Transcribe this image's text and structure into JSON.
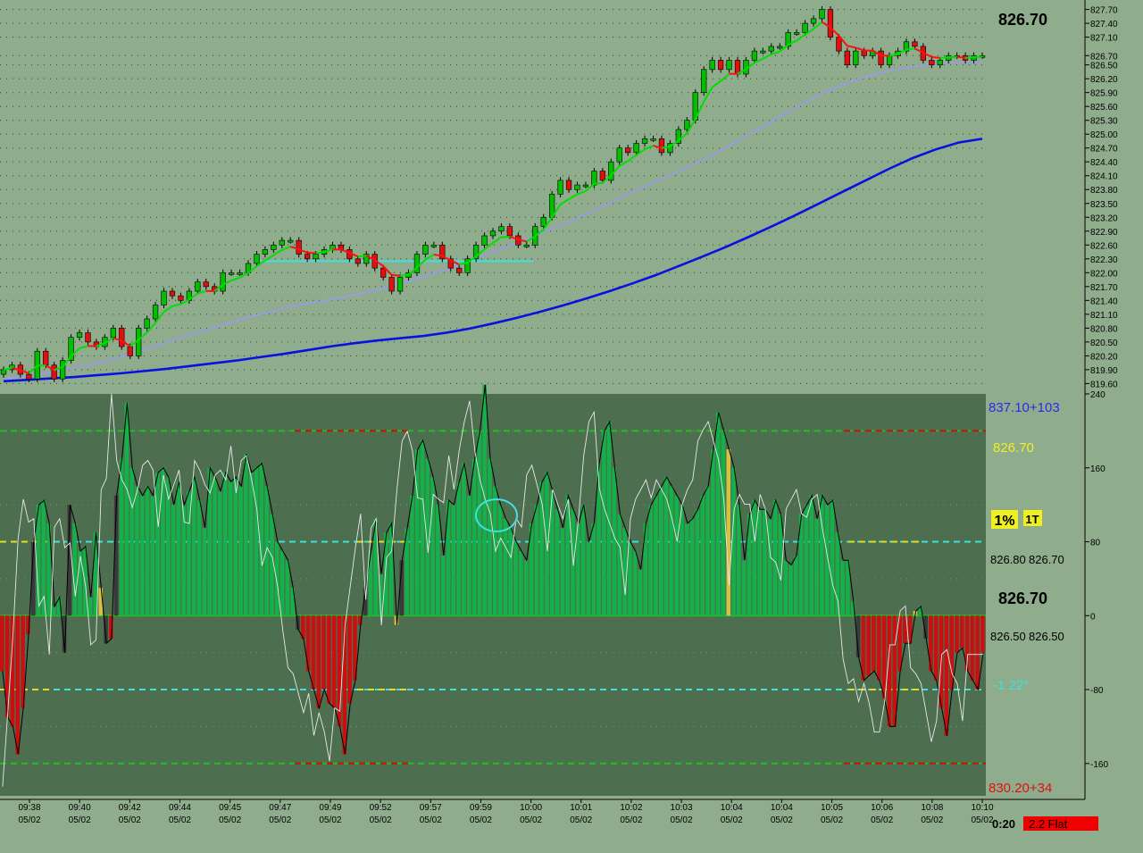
{
  "colors": {
    "background": "#8fac8c",
    "oscillator_panel": "#4d6e4f",
    "bull_candle": "#00c000",
    "bear_candle": "#e01010",
    "ma_fast_up": "#00e000",
    "ma_fast_down": "#ff1010",
    "ma_mid": "#9a9ae8",
    "ma_slow": "#0a10e0",
    "support_line": "#40e0e0",
    "histogram_up": "#14b04a",
    "histogram_down": "#c81010",
    "histogram_neutral": "#3a3a3a",
    "histogram_warn": "#d8c040"
  },
  "chart_data": [
    {
      "type": "candlestick",
      "title": "",
      "price_readout": "826.70",
      "y_ticks": [
        "827.70",
        "827.40",
        "827.10",
        "826.70",
        "826.50",
        "826.20",
        "825.90",
        "825.60",
        "825.30",
        "825.00",
        "824.70",
        "824.40",
        "824.10",
        "823.80",
        "823.50",
        "823.20",
        "822.90",
        "822.60",
        "822.30",
        "822.00",
        "821.70",
        "821.40",
        "821.10",
        "820.80",
        "820.50",
        "820.20",
        "819.90",
        "819.60"
      ],
      "ylim": [
        819.55,
        827.75
      ],
      "x_tick_times": [
        "09:38",
        "09:40",
        "09:42",
        "09:44",
        "09:45",
        "09:47",
        "09:49",
        "09:52",
        "09:57",
        "09:59",
        "10:00",
        "10:01",
        "10:02",
        "10:03",
        "10:04",
        "10:04",
        "10:05",
        "10:06",
        "10:08",
        "10:10"
      ],
      "x_tick_dates": [
        "05/02",
        "05/02",
        "05/02",
        "05/02",
        "05/02",
        "05/02",
        "05/02",
        "05/02",
        "05/02",
        "05/02",
        "05/02",
        "05/02",
        "05/02",
        "05/02",
        "05/02",
        "05/02",
        "05/02",
        "05/02",
        "05/02",
        "05/02"
      ],
      "closes": [
        819.9,
        820.0,
        819.8,
        819.7,
        820.3,
        820.0,
        819.7,
        820.1,
        820.6,
        820.7,
        820.5,
        820.4,
        820.6,
        820.8,
        820.4,
        820.2,
        820.8,
        821.0,
        821.3,
        821.6,
        821.5,
        821.4,
        821.6,
        821.8,
        821.7,
        821.6,
        822.0,
        822.0,
        822.0,
        822.2,
        822.4,
        822.5,
        822.6,
        822.7,
        822.7,
        822.4,
        822.3,
        822.4,
        822.5,
        822.6,
        822.5,
        822.3,
        822.2,
        822.4,
        822.1,
        821.9,
        821.6,
        821.9,
        822.0,
        822.4,
        822.6,
        822.6,
        822.3,
        822.1,
        822.0,
        822.3,
        822.6,
        822.8,
        822.9,
        823.0,
        822.8,
        822.6,
        822.6,
        823.0,
        823.2,
        823.7,
        824.0,
        823.8,
        823.9,
        823.9,
        824.2,
        824.0,
        824.4,
        824.7,
        824.6,
        824.8,
        824.9,
        824.9,
        824.6,
        824.8,
        825.1,
        825.3,
        825.9,
        826.4,
        826.6,
        826.4,
        826.6,
        826.3,
        826.6,
        826.8,
        826.8,
        826.9,
        826.9,
        827.2,
        827.2,
        827.4,
        827.5,
        827.7,
        827.1,
        826.8,
        826.5,
        826.8,
        826.7,
        826.8,
        826.5,
        826.7,
        826.8,
        827.0,
        826.9,
        826.6,
        826.5,
        826.6,
        826.7,
        826.7,
        826.6,
        826.7,
        826.7
      ],
      "series": [
        {
          "name": "",
          "color": "#0a10e0",
          "values": [
            819.65,
            819.68,
            819.71,
            819.74,
            819.78,
            819.82,
            819.87,
            819.92,
            819.98,
            820.04,
            820.1,
            820.17,
            820.24,
            820.32,
            820.4,
            820.47,
            820.53,
            820.58,
            820.63,
            820.7,
            820.79,
            820.9,
            821.02,
            821.15,
            821.29,
            821.44,
            821.6,
            821.77,
            821.95,
            822.15,
            822.35,
            822.56,
            822.78,
            823.01,
            823.25,
            823.5,
            823.75,
            824.0,
            824.25,
            824.48,
            824.67,
            824.82,
            824.9
          ]
        },
        {
          "name": "",
          "color": "#9a9ae8",
          "values": [
            819.7,
            819.78,
            819.86,
            819.96,
            820.08,
            820.23,
            820.4,
            820.58,
            820.75,
            820.92,
            821.07,
            821.21,
            821.32,
            821.41,
            821.52,
            821.65,
            821.79,
            821.96,
            822.14,
            822.34,
            822.55,
            822.76,
            822.98,
            823.22,
            823.47,
            823.73,
            823.98,
            824.22,
            824.48,
            824.78,
            825.08,
            825.4,
            825.7,
            825.98,
            826.18,
            826.34,
            826.44,
            826.53,
            826.55,
            826.56
          ]
        }
      ],
      "annotations": [
        {
          "type": "horizontal-line",
          "value": 822.25,
          "color": "#40e0e0"
        }
      ]
    },
    {
      "type": "histogram",
      "title": "",
      "y_ticks": [
        "240",
        "160",
        "80",
        "0",
        "-80",
        "-160"
      ],
      "ylim": [
        -195,
        240
      ],
      "levels": [
        200,
        80,
        0,
        -80,
        -160
      ],
      "labels": {
        "upper_band": "837.10+103",
        "price_top": "826.70",
        "percent_badge": "1%",
        "t_badge": "1T",
        "pair_upper_left": "826.80",
        "pair_upper_right": "826.70",
        "zero_readout": "826.70",
        "pair_lower_left": "826.50",
        "pair_lower_right": "826.50",
        "angle_readout": "-1  22°",
        "lower_band": "830.20+34"
      },
      "bottom_left_value": "0:20",
      "status_badge": "2.2 Flat",
      "histogram_values": [
        -60,
        -110,
        -120,
        -150,
        -100,
        -20,
        80,
        120,
        125,
        100,
        10,
        20,
        -40,
        120,
        100,
        70,
        75,
        20,
        90,
        30,
        -30,
        -25,
        130,
        170,
        230,
        160,
        140,
        130,
        140,
        130,
        155,
        160,
        150,
        120,
        145,
        120,
        135,
        150,
        125,
        95,
        160,
        150,
        135,
        155,
        145,
        150,
        140,
        175,
        155,
        160,
        165,
        140,
        110,
        80,
        70,
        60,
        30,
        -15,
        -25,
        -60,
        -80,
        -100,
        -80,
        -95,
        -100,
        -120,
        -150,
        -95,
        -70,
        -10,
        30,
        70,
        105,
        45,
        90,
        100,
        -10,
        60,
        95,
        130,
        180,
        190,
        170,
        150,
        120,
        65,
        125,
        120,
        145,
        165,
        130,
        170,
        200,
        250,
        170,
        140,
        120,
        105,
        95,
        80,
        70,
        60,
        100,
        120,
        145,
        155,
        135,
        115,
        95,
        130,
        115,
        100,
        120,
        80,
        100,
        165,
        200,
        210,
        160,
        110,
        95,
        80,
        70,
        50,
        100,
        120,
        130,
        140,
        150,
        140,
        130,
        120,
        100,
        105,
        115,
        130,
        140,
        180,
        220,
        200,
        180,
        160,
        120,
        60,
        110,
        125,
        115,
        115,
        105,
        125,
        110,
        60,
        55,
        65,
        110,
        120,
        130,
        105,
        130,
        120,
        125,
        90,
        60,
        60,
        15,
        -45,
        -70,
        -65,
        -60,
        -70,
        -90,
        -120,
        -120,
        -60,
        -30,
        -30,
        5,
        10,
        -25,
        -60,
        -70,
        -100,
        -130,
        -80,
        -40,
        -35,
        -60,
        -70,
        -80,
        -40
      ]
    }
  ]
}
